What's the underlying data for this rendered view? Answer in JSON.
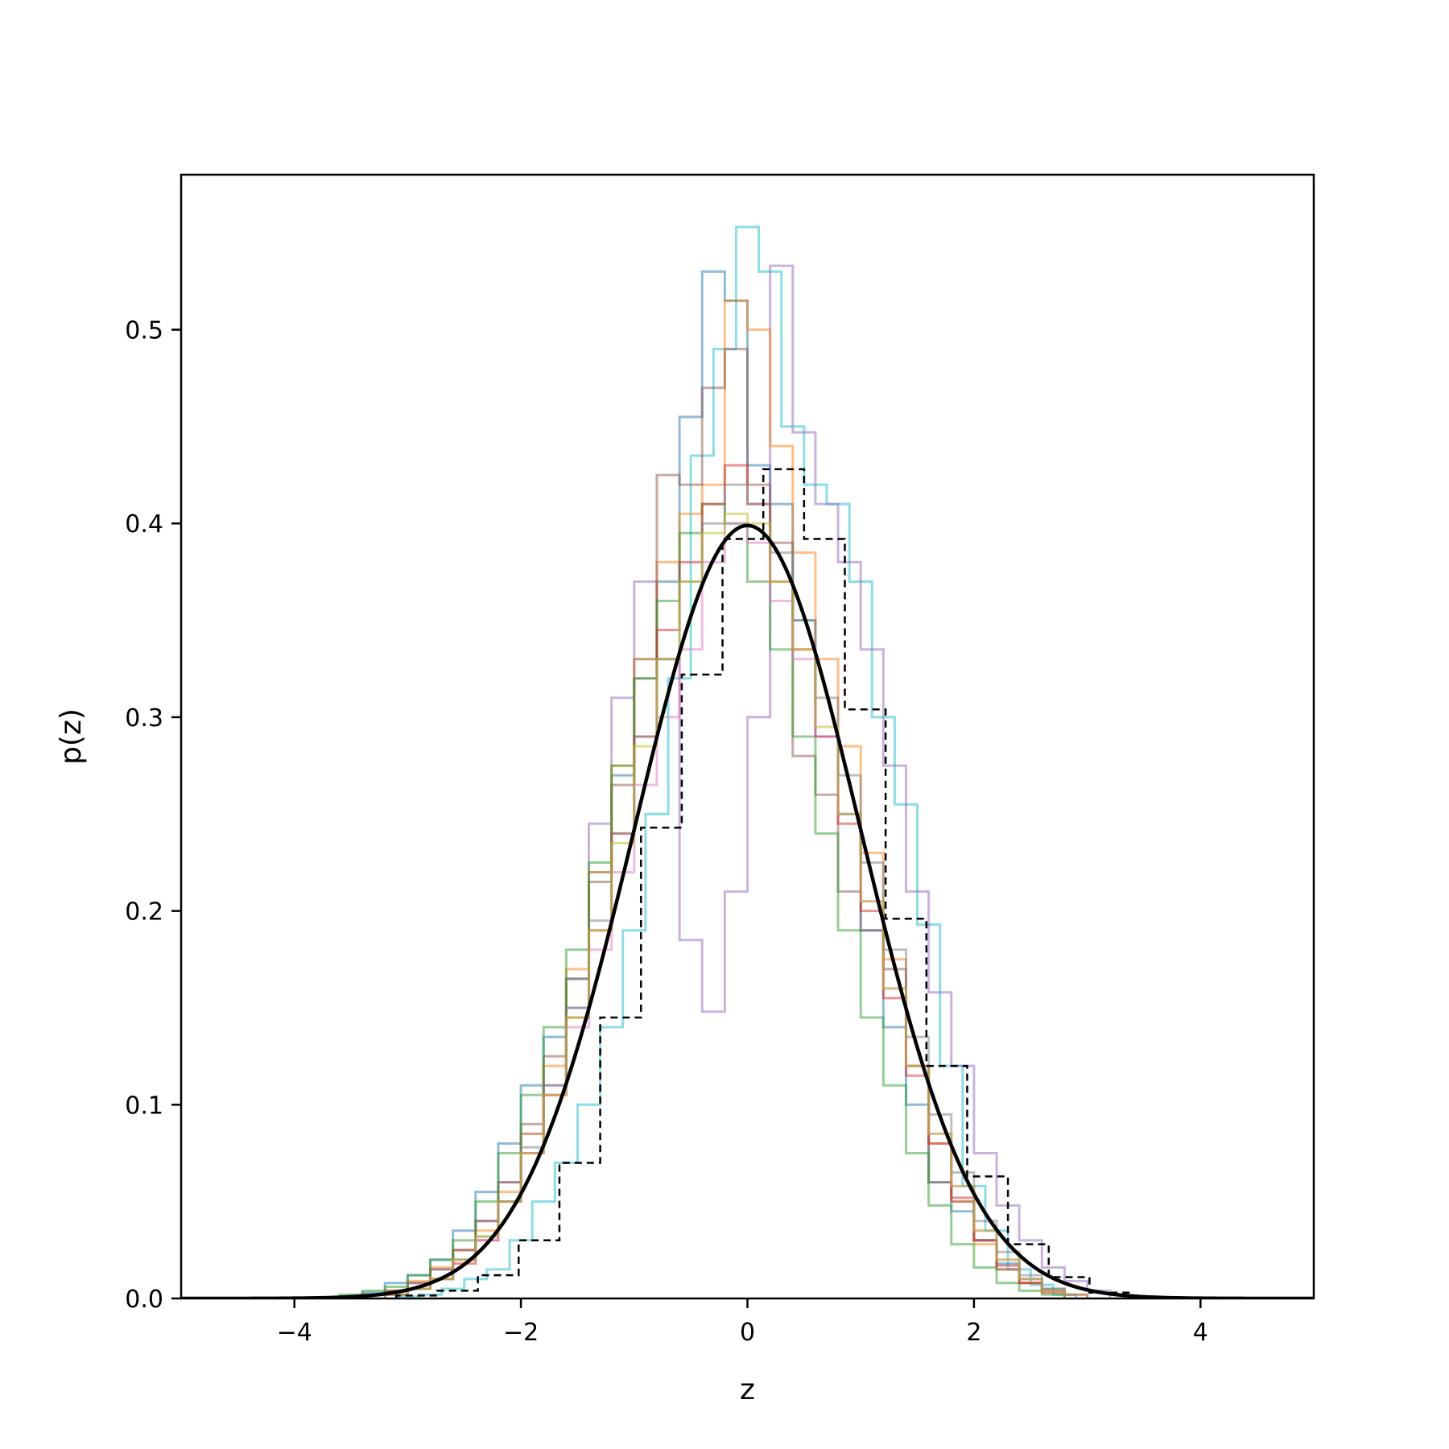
{
  "chart_data": {
    "type": "histogram",
    "title": "",
    "xlabel": "z",
    "ylabel": "p(z)",
    "xlim": [
      -5,
      5
    ],
    "ylim": [
      0,
      0.58
    ],
    "x_ticks": [
      -4,
      -2,
      0,
      2,
      4
    ],
    "x_tick_labels": [
      "−4",
      "−2",
      "0",
      "2",
      "4"
    ],
    "y_ticks": [
      0.0,
      0.1,
      0.2,
      0.3,
      0.4,
      0.5
    ],
    "y_tick_labels": [
      "0.0",
      "0.1",
      "0.2",
      "0.3",
      "0.4",
      "0.5"
    ],
    "grid": false,
    "legend": "none",
    "overlay_line": {
      "function": "standard normal pdf",
      "color": "#000000",
      "x_range": [
        -5,
        5
      ]
    },
    "reference_histogram": {
      "style": "dashed",
      "color": "#000000",
      "bin_start": -3.1,
      "bin_width": 0.36,
      "values": [
        0.0015,
        0.004,
        0.012,
        0.03,
        0.07,
        0.145,
        0.243,
        0.322,
        0.392,
        0.428,
        0.392,
        0.304,
        0.196,
        0.12,
        0.063,
        0.028,
        0.011,
        0.003,
        0.0005
      ]
    },
    "series": [
      {
        "color": "#17becf",
        "bin_start": -3.1,
        "bin_width": 0.2,
        "values": [
          0.001,
          0.002,
          0.005,
          0.01,
          0.015,
          0.03,
          0.05,
          0.07,
          0.1,
          0.14,
          0.19,
          0.25,
          0.32,
          0.435,
          0.49,
          0.553,
          0.53,
          0.45,
          0.42,
          0.41,
          0.37,
          0.3,
          0.255,
          0.193,
          0.12,
          0.058,
          0.035,
          0.015,
          0.007,
          0.002
        ]
      },
      {
        "color": "#1f77b4",
        "bin_start": -3.6,
        "bin_width": 0.2,
        "values": [
          0.001,
          0.003,
          0.008,
          0.012,
          0.02,
          0.035,
          0.055,
          0.08,
          0.11,
          0.135,
          0.165,
          0.22,
          0.27,
          0.33,
          0.37,
          0.455,
          0.53,
          0.515,
          0.43,
          0.41,
          0.35,
          0.29,
          0.25,
          0.19,
          0.14,
          0.1,
          0.06,
          0.045,
          0.03,
          0.018,
          0.01,
          0.005,
          0.002
        ]
      },
      {
        "color": "#9467bd",
        "bin_start": -3.4,
        "bin_width": 0.2,
        "values": [
          0.002,
          0.004,
          0.008,
          0.015,
          0.025,
          0.04,
          0.06,
          0.085,
          0.11,
          0.15,
          0.245,
          0.31,
          0.37,
          0.33,
          0.185,
          0.148,
          0.21,
          0.3,
          0.533,
          0.447,
          0.41,
          0.38,
          0.335,
          0.275,
          0.21,
          0.158,
          0.12,
          0.075,
          0.048,
          0.03,
          0.016,
          0.009,
          0.004
        ]
      },
      {
        "color": "#ff7f0e",
        "bin_start": -3.4,
        "bin_width": 0.2,
        "values": [
          0.002,
          0.004,
          0.009,
          0.016,
          0.025,
          0.035,
          0.055,
          0.085,
          0.12,
          0.17,
          0.22,
          0.275,
          0.33,
          0.38,
          0.405,
          0.42,
          0.515,
          0.5,
          0.44,
          0.385,
          0.33,
          0.285,
          0.23,
          0.175,
          0.12,
          0.08,
          0.05,
          0.028,
          0.015,
          0.008,
          0.004,
          0.002
        ]
      },
      {
        "color": "#8c564b",
        "bin_start": -3.4,
        "bin_width": 0.2,
        "values": [
          0.002,
          0.004,
          0.008,
          0.015,
          0.025,
          0.04,
          0.06,
          0.09,
          0.125,
          0.165,
          0.215,
          0.265,
          0.32,
          0.425,
          0.42,
          0.47,
          0.49,
          0.42,
          0.39,
          0.28,
          0.26,
          0.21,
          0.19,
          0.17,
          0.12,
          0.06,
          0.05,
          0.03,
          0.015,
          0.008,
          0.004
        ]
      },
      {
        "color": "#2ca02c",
        "bin_start": -3.6,
        "bin_width": 0.2,
        "values": [
          0.002,
          0.004,
          0.006,
          0.012,
          0.02,
          0.03,
          0.05,
          0.075,
          0.105,
          0.14,
          0.18,
          0.225,
          0.275,
          0.32,
          0.36,
          0.395,
          0.41,
          0.4,
          0.37,
          0.335,
          0.29,
          0.24,
          0.19,
          0.145,
          0.11,
          0.075,
          0.048,
          0.028,
          0.016,
          0.008,
          0.004,
          0.002
        ]
      },
      {
        "color": "#d62728",
        "bin_start": -3.2,
        "bin_width": 0.2,
        "values": [
          0.002,
          0.005,
          0.01,
          0.018,
          0.03,
          0.05,
          0.075,
          0.105,
          0.145,
          0.19,
          0.24,
          0.29,
          0.345,
          0.38,
          0.41,
          0.43,
          0.41,
          0.37,
          0.335,
          0.29,
          0.245,
          0.2,
          0.155,
          0.115,
          0.08,
          0.052,
          0.03,
          0.017,
          0.008,
          0.003
        ]
      },
      {
        "color": "#e377c2",
        "bin_start": -3.2,
        "bin_width": 0.2,
        "values": [
          0.002,
          0.005,
          0.01,
          0.02,
          0.03,
          0.05,
          0.075,
          0.105,
          0.14,
          0.18,
          0.22,
          0.265,
          0.3,
          0.335,
          0.38,
          0.4,
          0.39,
          0.36,
          0.33,
          0.29,
          0.25,
          0.205,
          0.16,
          0.12,
          0.085,
          0.058,
          0.035,
          0.02,
          0.01,
          0.004
        ]
      },
      {
        "color": "#7f7f7f",
        "bin_start": -3.2,
        "bin_width": 0.2,
        "values": [
          0.002,
          0.005,
          0.01,
          0.02,
          0.032,
          0.05,
          0.078,
          0.11,
          0.15,
          0.195,
          0.24,
          0.29,
          0.33,
          0.37,
          0.4,
          0.42,
          0.41,
          0.385,
          0.35,
          0.31,
          0.27,
          0.225,
          0.18,
          0.135,
          0.095,
          0.065,
          0.04,
          0.024,
          0.012,
          0.005
        ]
      },
      {
        "color": "#bcbd22",
        "bin_start": -3.2,
        "bin_width": 0.2,
        "values": [
          0.002,
          0.005,
          0.01,
          0.02,
          0.032,
          0.05,
          0.075,
          0.105,
          0.145,
          0.19,
          0.235,
          0.285,
          0.33,
          0.37,
          0.395,
          0.405,
          0.4,
          0.37,
          0.335,
          0.295,
          0.25,
          0.205,
          0.16,
          0.12,
          0.085,
          0.058,
          0.035,
          0.02,
          0.01,
          0.004
        ]
      }
    ]
  }
}
